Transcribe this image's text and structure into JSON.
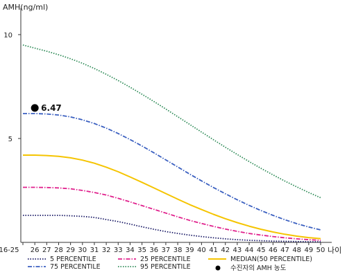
{
  "chart_data": {
    "type": "line",
    "ylabel": "AMH(ng/ml)",
    "xlabel": "나이",
    "ylim": [
      0,
      11
    ],
    "yticks": [
      5,
      10
    ],
    "categories": [
      "16-25",
      "26",
      "27",
      "28",
      "29",
      "30",
      "31",
      "32",
      "33",
      "34",
      "35",
      "36",
      "37",
      "38",
      "39",
      "40",
      "41",
      "42",
      "43",
      "44",
      "45",
      "46",
      "47",
      "48",
      "49",
      "50"
    ],
    "series": [
      {
        "name": "5 PERCENTILE",
        "color": "#1a1a66",
        "dash": "dot",
        "values": [
          1.3,
          1.3,
          1.3,
          1.3,
          1.28,
          1.25,
          1.2,
          1.1,
          1.0,
          0.88,
          0.75,
          0.63,
          0.52,
          0.43,
          0.35,
          0.28,
          0.22,
          0.17,
          0.13,
          0.1,
          0.08,
          0.06,
          0.05,
          0.04,
          0.03,
          0.03
        ]
      },
      {
        "name": "25 PERCENTILE",
        "color": "#e0208c",
        "dash": "dashdot",
        "values": [
          2.65,
          2.65,
          2.64,
          2.62,
          2.58,
          2.5,
          2.4,
          2.28,
          2.12,
          1.95,
          1.77,
          1.59,
          1.41,
          1.23,
          1.06,
          0.91,
          0.77,
          0.64,
          0.53,
          0.43,
          0.35,
          0.28,
          0.22,
          0.17,
          0.13,
          0.1
        ]
      },
      {
        "name": "MEDIAN(50 PERCENTILE)",
        "color": "#f5c400",
        "dash": "solid",
        "values": [
          4.2,
          4.2,
          4.18,
          4.14,
          4.07,
          3.96,
          3.81,
          3.62,
          3.4,
          3.15,
          2.89,
          2.62,
          2.35,
          2.08,
          1.82,
          1.58,
          1.35,
          1.14,
          0.95,
          0.78,
          0.63,
          0.5,
          0.39,
          0.3,
          0.23,
          0.18
        ]
      },
      {
        "name": "75 PERCENTILE",
        "color": "#3a5fc0",
        "dash": "dashdot",
        "values": [
          6.2,
          6.2,
          6.18,
          6.13,
          6.04,
          5.9,
          5.72,
          5.5,
          5.24,
          4.95,
          4.64,
          4.31,
          3.97,
          3.63,
          3.29,
          2.96,
          2.64,
          2.34,
          2.05,
          1.78,
          1.53,
          1.3,
          1.09,
          0.9,
          0.74,
          0.6
        ]
      },
      {
        "name": "95 PERCENTILE",
        "color": "#2e8b57",
        "dash": "dot",
        "values": [
          9.5,
          9.35,
          9.2,
          9.03,
          8.84,
          8.62,
          8.37,
          8.09,
          7.79,
          7.47,
          7.13,
          6.78,
          6.42,
          6.05,
          5.68,
          5.31,
          4.94,
          4.58,
          4.23,
          3.89,
          3.56,
          3.25,
          2.95,
          2.67,
          2.4,
          2.15
        ]
      }
    ],
    "patient_point": {
      "name": "수진자의 AMH 농도",
      "category": "26",
      "value": 6.47,
      "label": "6.47",
      "color": "#000000"
    },
    "legend_position": "bottom",
    "grid": false
  }
}
